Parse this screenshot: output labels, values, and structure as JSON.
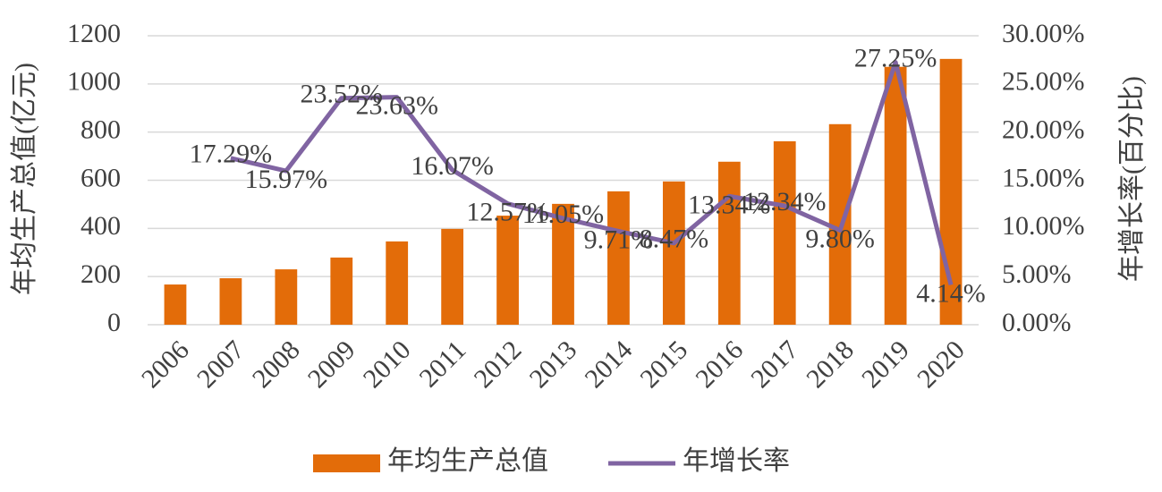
{
  "chart_data": {
    "type": "bar-line",
    "y_label": "年均生产总值(亿元)",
    "y2_label": "年增长率(百分比)",
    "categories": [
      "2006",
      "2007",
      "2008",
      "2009",
      "2010",
      "2011",
      "2012",
      "2013",
      "2014",
      "2015",
      "2016",
      "2017",
      "2018",
      "2019",
      "2020"
    ],
    "series": [
      {
        "name": "年均生产总值",
        "type": "bar",
        "color": "#e36c09",
        "values": [
          167,
          193,
          230,
          279,
          346,
          398,
          453,
          502,
          554,
          595,
          677,
          762,
          833,
          1071,
          1104
        ]
      },
      {
        "name": "年增长率",
        "type": "line",
        "axis": "y2",
        "color": "#8064a2",
        "values": [
          null,
          17.29,
          15.97,
          23.52,
          23.63,
          16.07,
          12.57,
          11.05,
          9.71,
          8.47,
          13.34,
          12.34,
          9.8,
          27.25,
          4.14
        ],
        "value_labels": [
          null,
          "17.29%",
          "15.97%",
          "23.52%",
          "23.63%",
          "16.07%",
          "12.57%",
          "11.05%",
          "9.71%",
          "8.47%",
          "13.34%",
          "12.34%",
          "9.80%",
          "27.25%",
          "4.14%"
        ]
      }
    ],
    "ylim": [
      0,
      1200
    ],
    "yticks": [
      0,
      200,
      400,
      600,
      800,
      1000,
      1200
    ],
    "y2lim": [
      0,
      30
    ],
    "y2ticks": [
      {
        "value": 0,
        "label": "0.00%"
      },
      {
        "value": 5,
        "label": "5.00%"
      },
      {
        "value": 10,
        "label": "10.00%"
      },
      {
        "value": 15,
        "label": "15.00%"
      },
      {
        "value": 20,
        "label": "20.00%"
      },
      {
        "value": 25,
        "label": "25.00%"
      },
      {
        "value": 30,
        "label": "30.00%"
      }
    ],
    "grid": true,
    "legend": "bottom"
  }
}
